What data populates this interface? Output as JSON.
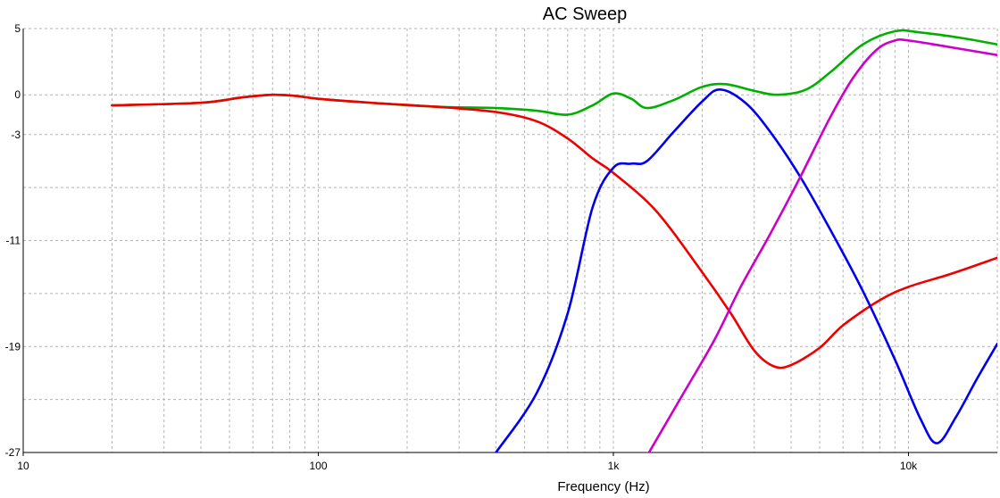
{
  "chart_data": {
    "type": "line",
    "title": "AC Sweep",
    "xlabel": "Frequency (Hz)",
    "ylabel": "",
    "x_scale": "log",
    "xlim": [
      10,
      20000
    ],
    "ylim": [
      -27,
      5
    ],
    "x_ticks": [
      {
        "value": 10,
        "label": "10"
      },
      {
        "value": 100,
        "label": "100"
      },
      {
        "value": 1000,
        "label": "1k"
      },
      {
        "value": 10000,
        "label": "10k"
      }
    ],
    "y_ticks": [
      {
        "value": 5,
        "label": "5"
      },
      {
        "value": 0,
        "label": "0"
      },
      {
        "value": -3,
        "label": "-3"
      },
      {
        "value": -11,
        "label": "-11"
      },
      {
        "value": -19,
        "label": "-19"
      },
      {
        "value": -27,
        "label": "-27"
      }
    ],
    "y_grid_extra": [
      -7,
      -15,
      -23
    ],
    "grid": true,
    "legend": "none",
    "series": [
      {
        "color": "#00b000",
        "points": [
          [
            20,
            -0.8
          ],
          [
            40,
            -0.6
          ],
          [
            55,
            -0.2
          ],
          [
            70,
            0
          ],
          [
            85,
            -0.1
          ],
          [
            100,
            -0.3
          ],
          [
            150,
            -0.6
          ],
          [
            250,
            -0.9
          ],
          [
            400,
            -1.0
          ],
          [
            550,
            -1.2
          ],
          [
            700,
            -1.5
          ],
          [
            850,
            -0.8
          ],
          [
            1000,
            0.1
          ],
          [
            1150,
            -0.3
          ],
          [
            1300,
            -1.0
          ],
          [
            1600,
            -0.4
          ],
          [
            2000,
            0.6
          ],
          [
            2400,
            0.8
          ],
          [
            3000,
            0.3
          ],
          [
            3600,
            0
          ],
          [
            4500,
            0.4
          ],
          [
            5500,
            1.8
          ],
          [
            7000,
            3.8
          ],
          [
            9000,
            4.8
          ],
          [
            11000,
            4.7
          ],
          [
            15000,
            4.3
          ],
          [
            20000,
            3.8
          ]
        ]
      },
      {
        "color": "#ee0000",
        "points": [
          [
            20,
            -0.8
          ],
          [
            40,
            -0.6
          ],
          [
            55,
            -0.2
          ],
          [
            70,
            0
          ],
          [
            85,
            -0.1
          ],
          [
            100,
            -0.3
          ],
          [
            150,
            -0.6
          ],
          [
            250,
            -0.9
          ],
          [
            400,
            -1.3
          ],
          [
            550,
            -2.0
          ],
          [
            700,
            -3.3
          ],
          [
            850,
            -4.8
          ],
          [
            1000,
            -5.9
          ],
          [
            1400,
            -8.8
          ],
          [
            2000,
            -13.4
          ],
          [
            2500,
            -16.5
          ],
          [
            3000,
            -19.3
          ],
          [
            3500,
            -20.5
          ],
          [
            4000,
            -20.4
          ],
          [
            5000,
            -19.1
          ],
          [
            6000,
            -17.4
          ],
          [
            8000,
            -15.5
          ],
          [
            10000,
            -14.5
          ],
          [
            14000,
            -13.5
          ],
          [
            20000,
            -12.3
          ]
        ]
      },
      {
        "color": "#0000ee",
        "points": [
          [
            400,
            -27
          ],
          [
            550,
            -22.5
          ],
          [
            700,
            -16.5
          ],
          [
            850,
            -8.5
          ],
          [
            1000,
            -5.5
          ],
          [
            1150,
            -5.2
          ],
          [
            1300,
            -5.0
          ],
          [
            1600,
            -2.8
          ],
          [
            2000,
            -0.5
          ],
          [
            2300,
            0.4
          ],
          [
            2800,
            -0.6
          ],
          [
            3400,
            -2.8
          ],
          [
            4300,
            -6.2
          ],
          [
            5500,
            -10.4
          ],
          [
            7000,
            -14.8
          ],
          [
            9000,
            -20.0
          ],
          [
            11000,
            -24.5
          ],
          [
            12500,
            -26.3
          ],
          [
            14500,
            -24.3
          ],
          [
            17000,
            -21.5
          ],
          [
            20000,
            -18.8
          ]
        ]
      },
      {
        "color": "#cc00cc",
        "points": [
          [
            1320,
            -27
          ],
          [
            1700,
            -22.8
          ],
          [
            2200,
            -18.5
          ],
          [
            2700,
            -14.5
          ],
          [
            3400,
            -10.5
          ],
          [
            4300,
            -6.2
          ],
          [
            5400,
            -1.8
          ],
          [
            6500,
            1.3
          ],
          [
            7800,
            3.4
          ],
          [
            9000,
            4.1
          ],
          [
            10000,
            4.1
          ],
          [
            13000,
            3.7
          ],
          [
            20000,
            3.0
          ]
        ]
      }
    ]
  }
}
